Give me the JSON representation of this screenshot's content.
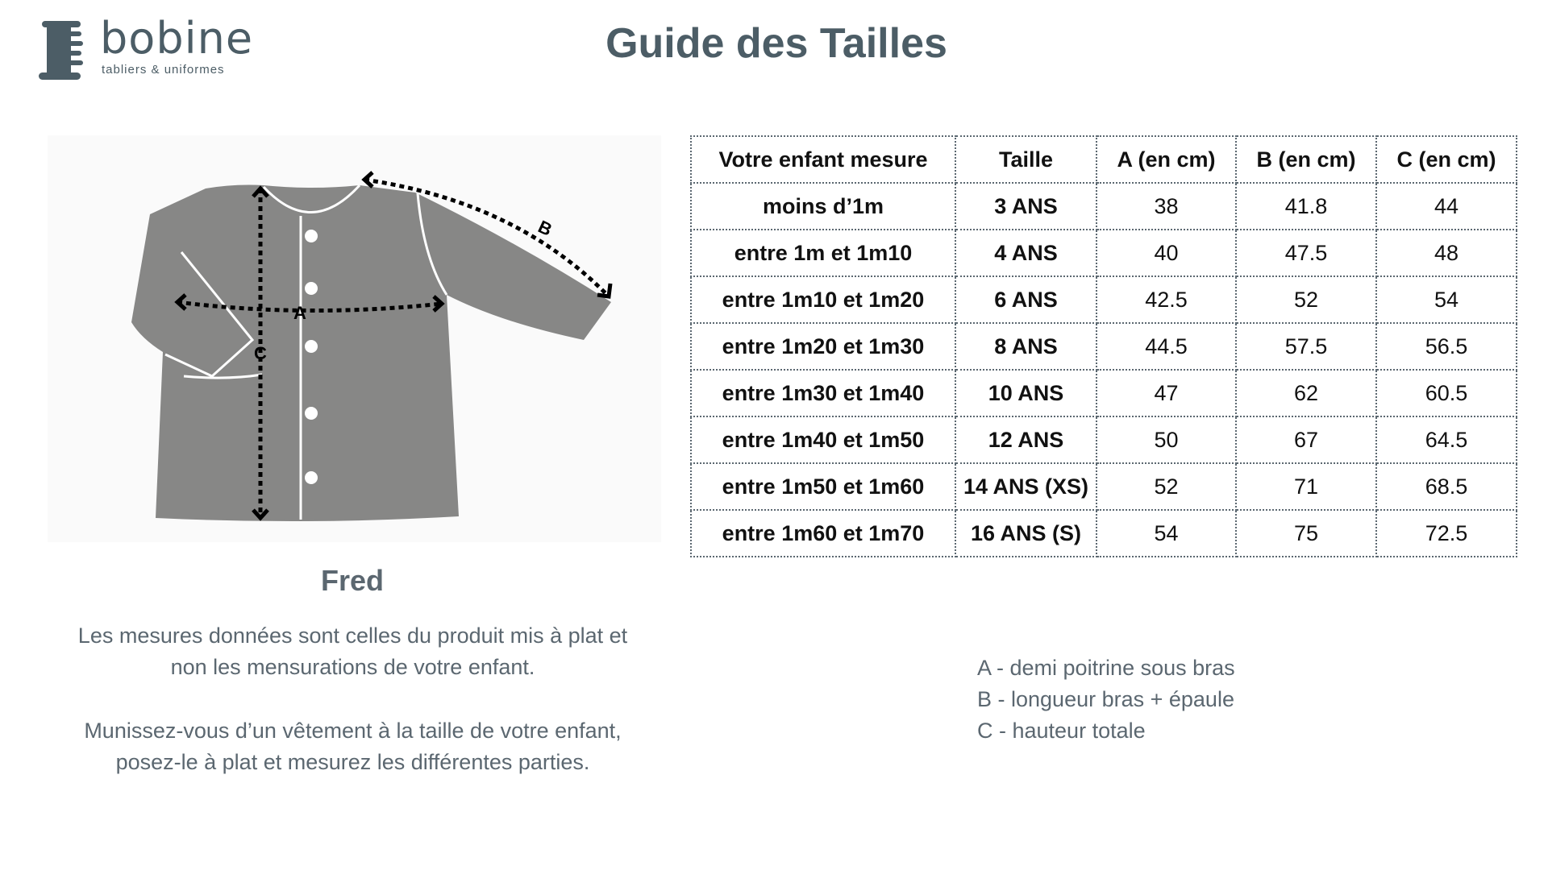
{
  "logo": {
    "brand": "bobine",
    "tagline": "tabliers & uniformes"
  },
  "title": "Guide des Tailles",
  "figure": {
    "labels": {
      "a": "A",
      "b": "B",
      "c": "C"
    }
  },
  "product_name": "Fred",
  "notes": [
    [
      "Les mesures données sont celles du produit mis à plat et",
      "non les mensurations de votre enfant."
    ],
    [
      "Munissez-vous d’un vêtement à la taille de votre enfant,",
      "posez-le à plat et mesurez les différentes parties."
    ]
  ],
  "table": {
    "headers": [
      "Votre enfant mesure",
      "Taille",
      "A (en cm)",
      "B (en cm)",
      "C (en cm)"
    ],
    "rows": [
      [
        "moins d’1m",
        "3 ANS",
        "38",
        "41.8",
        "44"
      ],
      [
        "entre 1m et 1m10",
        "4 ANS",
        "40",
        "47.5",
        "48"
      ],
      [
        "entre 1m10 et 1m20",
        "6 ANS",
        "42.5",
        "52",
        "54"
      ],
      [
        "entre 1m20 et 1m30",
        "8 ANS",
        "44.5",
        "57.5",
        "56.5"
      ],
      [
        "entre 1m30 et 1m40",
        "10 ANS",
        "47",
        "62",
        "60.5"
      ],
      [
        "entre 1m40 et 1m50",
        "12 ANS",
        "50",
        "67",
        "64.5"
      ],
      [
        "entre 1m50 et 1m60",
        "14 ANS (XS)",
        "52",
        "71",
        "68.5"
      ],
      [
        "entre 1m60 et 1m70",
        "16 ANS (S)",
        "54",
        "75",
        "72.5"
      ]
    ]
  },
  "legend": [
    "A - demi poitrine sous bras",
    "B - longueur bras + épaule",
    "C - hauteur totale"
  ],
  "colors": {
    "brand": "#4c5d66",
    "text": "#5b6770",
    "garment": "#878786"
  }
}
